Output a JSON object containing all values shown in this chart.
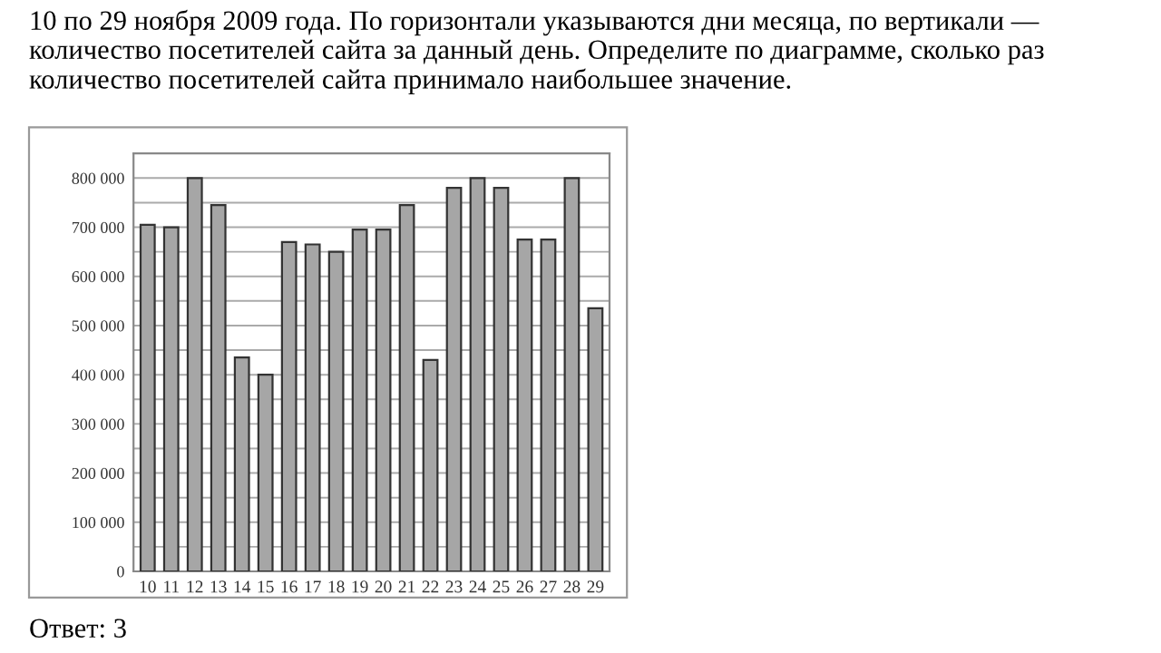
{
  "chart_data": {
    "type": "bar",
    "title": "10 по 29 ноября 2009 года. По горизонтали указываются дни месяца, по вертикали — количество посетителей сайта за данный день. Определите по диаграмме, сколько раз количество посетителей сайта принимало наибольшее значение.",
    "annotations": [
      "Ответ: 3"
    ],
    "categories": [
      "10",
      "11",
      "12",
      "13",
      "14",
      "15",
      "16",
      "17",
      "18",
      "19",
      "20",
      "21",
      "22",
      "23",
      "24",
      "25",
      "26",
      "27",
      "28",
      "29"
    ],
    "values": [
      705000,
      700000,
      800000,
      745000,
      435000,
      400000,
      670000,
      665000,
      650000,
      695000,
      695000,
      745000,
      430000,
      780000,
      800000,
      780000,
      675000,
      675000,
      800000,
      535000
    ],
    "color": "#a6a6a6",
    "ylim": [
      0,
      850000
    ],
    "yticks": [
      0,
      {
        "value": 50000,
        "label": null
      },
      {
        "value": 100000,
        "label": "100 000"
      },
      {
        "value": 150000,
        "label": null
      },
      {
        "value": 200000,
        "label": "200 000"
      },
      {
        "value": 250000,
        "label": null
      },
      {
        "value": 300000,
        "label": "300 000"
      },
      {
        "value": 350000,
        "label": null
      },
      {
        "value": 400000,
        "label": "400 000"
      },
      {
        "value": 450000,
        "label": null
      },
      {
        "value": 500000,
        "label": "500 000"
      },
      {
        "value": 550000,
        "label": null
      },
      {
        "value": 600000,
        "label": "600 000"
      },
      {
        "value": 650000,
        "label": null
      },
      {
        "value": 700000,
        "label": "700 000"
      },
      {
        "value": 750000,
        "label": null
      },
      {
        "value": 800000,
        "label": "800 000"
      }
    ],
    "grid": "y"
  }
}
